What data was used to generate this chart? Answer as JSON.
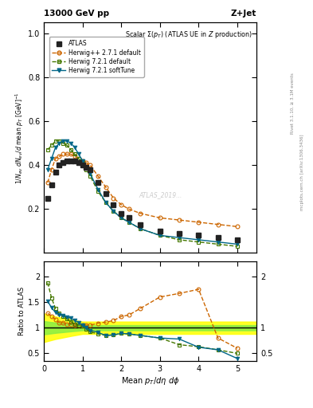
{
  "top_left_label": "13000 GeV pp",
  "top_right_label": "Z+Jet",
  "title_inside": "Scalar Σ(p_{T}) (ATLAS UE in Z production)",
  "ylabel_main": "1/N_{ev} dN_{ev}/d mean p_{T} [GeV]^{-1}",
  "ylabel_ratio": "Ratio to ATLAS",
  "xlabel": "Mean p_{T}/dη dϕ",
  "right_label_top": "Rivet 3.1.10, ≥ 3.1M events",
  "right_label_bottom": "mcplots.cern.ch [arXiv:1306.3436]",
  "watermark": "ATLAS_2019...",
  "atlas_x": [
    0.1,
    0.2,
    0.3,
    0.4,
    0.5,
    0.6,
    0.7,
    0.8,
    0.9,
    1.0,
    1.1,
    1.2,
    1.4,
    1.6,
    1.8,
    2.0,
    2.2,
    2.5,
    3.0,
    3.5,
    4.0,
    4.5,
    5.0
  ],
  "atlas_y": [
    0.25,
    0.31,
    0.37,
    0.4,
    0.41,
    0.42,
    0.42,
    0.42,
    0.41,
    0.4,
    0.39,
    0.38,
    0.32,
    0.27,
    0.22,
    0.18,
    0.16,
    0.13,
    0.1,
    0.09,
    0.08,
    0.07,
    0.06
  ],
  "herwig_pp_x": [
    0.1,
    0.2,
    0.3,
    0.4,
    0.5,
    0.6,
    0.7,
    0.8,
    0.9,
    1.0,
    1.1,
    1.2,
    1.4,
    1.6,
    1.8,
    2.0,
    2.2,
    2.5,
    3.0,
    3.5,
    4.0,
    4.5,
    5.0
  ],
  "herwig_pp_y": [
    0.32,
    0.38,
    0.43,
    0.44,
    0.45,
    0.45,
    0.45,
    0.44,
    0.43,
    0.42,
    0.41,
    0.4,
    0.35,
    0.3,
    0.25,
    0.22,
    0.2,
    0.18,
    0.16,
    0.15,
    0.14,
    0.13,
    0.12
  ],
  "herwig721_x": [
    0.1,
    0.2,
    0.3,
    0.4,
    0.5,
    0.6,
    0.7,
    0.8,
    0.9,
    1.0,
    1.1,
    1.2,
    1.4,
    1.6,
    1.8,
    2.0,
    2.2,
    2.5,
    3.0,
    3.5,
    4.0,
    4.5,
    5.0
  ],
  "herwig721_y": [
    0.47,
    0.49,
    0.51,
    0.51,
    0.5,
    0.49,
    0.47,
    0.45,
    0.43,
    0.41,
    0.38,
    0.35,
    0.28,
    0.23,
    0.19,
    0.16,
    0.14,
    0.11,
    0.08,
    0.06,
    0.05,
    0.04,
    0.03
  ],
  "herwig721soft_x": [
    0.1,
    0.2,
    0.3,
    0.4,
    0.5,
    0.6,
    0.7,
    0.8,
    0.9,
    1.0,
    1.1,
    1.2,
    1.4,
    1.6,
    1.8,
    2.0,
    2.2,
    2.5,
    3.0,
    3.5,
    4.0,
    4.5,
    5.0
  ],
  "herwig721soft_y": [
    0.38,
    0.43,
    0.48,
    0.5,
    0.51,
    0.51,
    0.5,
    0.48,
    0.45,
    0.42,
    0.39,
    0.36,
    0.29,
    0.23,
    0.19,
    0.16,
    0.14,
    0.11,
    0.08,
    0.07,
    0.06,
    0.05,
    0.04
  ],
  "ratio_x": [
    0.1,
    0.2,
    0.3,
    0.4,
    0.5,
    0.6,
    0.7,
    0.8,
    0.9,
    1.0,
    1.1,
    1.2,
    1.4,
    1.6,
    1.8,
    2.0,
    2.2,
    2.5,
    3.0,
    3.5,
    4.0,
    4.5,
    5.0
  ],
  "ratio_herwig_pp_y": [
    1.28,
    1.23,
    1.16,
    1.1,
    1.1,
    1.07,
    1.07,
    1.05,
    1.05,
    1.05,
    1.05,
    1.05,
    1.09,
    1.11,
    1.14,
    1.22,
    1.25,
    1.38,
    1.6,
    1.67,
    1.75,
    0.8,
    0.6
  ],
  "ratio_herwig721_y": [
    1.88,
    1.58,
    1.38,
    1.28,
    1.22,
    1.17,
    1.12,
    1.07,
    1.05,
    1.03,
    0.97,
    0.92,
    0.88,
    0.85,
    0.86,
    0.89,
    0.88,
    0.85,
    0.8,
    0.67,
    0.63,
    0.57,
    0.5
  ],
  "ratio_herwig721soft_y": [
    1.52,
    1.39,
    1.3,
    1.25,
    1.24,
    1.21,
    1.19,
    1.14,
    1.1,
    1.05,
    1.0,
    0.95,
    0.91,
    0.85,
    0.86,
    0.89,
    0.88,
    0.85,
    0.8,
    0.78,
    0.62,
    0.57,
    0.4
  ],
  "band_x": [
    0.0,
    0.3,
    0.7,
    1.0,
    1.5,
    2.0,
    2.5,
    3.0,
    3.5,
    4.0,
    4.5,
    5.0,
    5.5
  ],
  "band_green_low": [
    0.87,
    0.9,
    0.93,
    0.95,
    0.95,
    0.95,
    0.95,
    0.95,
    0.95,
    0.95,
    0.95,
    0.95,
    0.95
  ],
  "band_green_high": [
    1.13,
    1.1,
    1.07,
    1.05,
    1.05,
    1.05,
    1.05,
    1.05,
    1.05,
    1.05,
    1.05,
    1.05,
    1.05
  ],
  "band_yellow_low": [
    0.72,
    0.78,
    0.84,
    0.88,
    0.88,
    0.88,
    0.88,
    0.88,
    0.88,
    0.88,
    0.88,
    0.88,
    0.88
  ],
  "band_yellow_high": [
    1.28,
    1.22,
    1.16,
    1.12,
    1.12,
    1.12,
    1.12,
    1.12,
    1.12,
    1.12,
    1.12,
    1.12,
    1.12
  ],
  "color_atlas": "#222222",
  "color_herwig_pp": "#cc6600",
  "color_herwig721": "#447700",
  "color_herwig721soft": "#006688",
  "xlim": [
    0,
    5.5
  ],
  "ylim_main": [
    0,
    1.05
  ],
  "ylim_ratio": [
    0.35,
    2.3
  ],
  "yticks_main": [
    0.2,
    0.4,
    0.6,
    0.8,
    1.0
  ],
  "yticks_ratio": [
    0.5,
    1.0,
    1.5,
    2.0
  ]
}
